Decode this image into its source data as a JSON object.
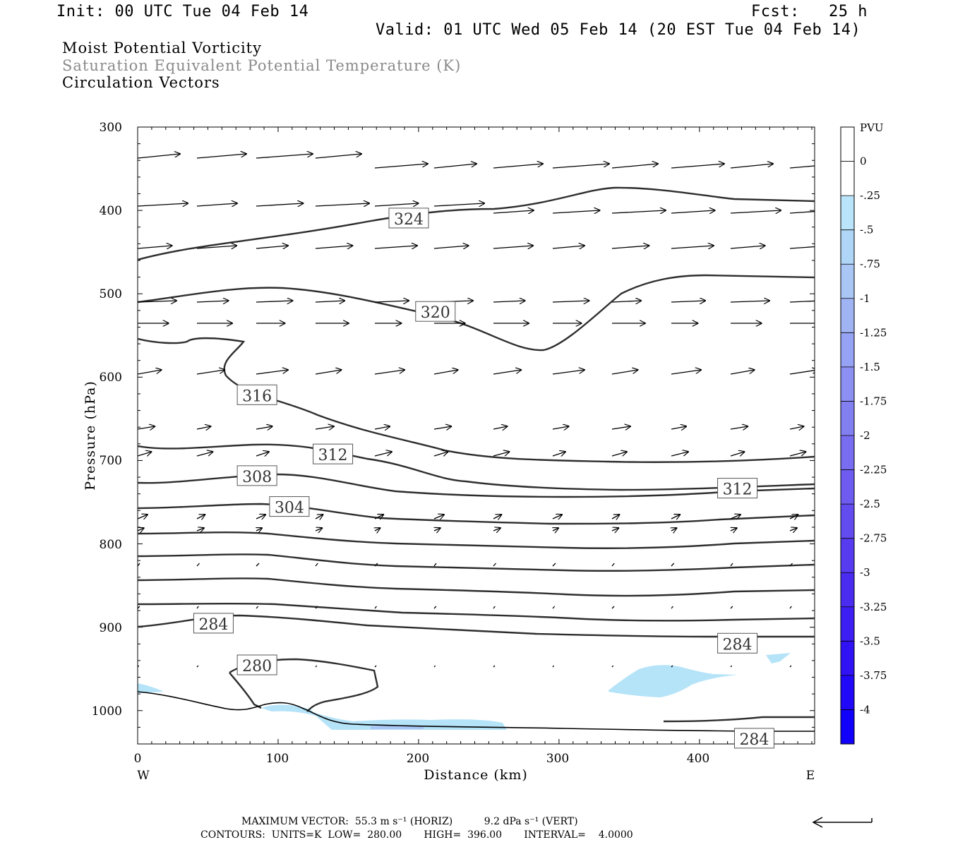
{
  "header": {
    "init": "Init: 00 UTC Tue 04 Feb 14",
    "fcst": "Fcst:   25 h",
    "valid": "Valid: 01 UTC Wed 05 Feb 14 (20 EST Tue 04 Feb 14)"
  },
  "fields": {
    "field1": "Moist Potential Vorticity",
    "field2": "Saturation Equivalent Potential Temperature (K)",
    "field3": "Circulation Vectors"
  },
  "colors": {
    "field2_text": "#8a8a8a",
    "contour": "#2e2e2e",
    "shade_light": "#b5e3f8",
    "shade_mid": "#a9c6f4"
  },
  "chart_data": {
    "type": "contour",
    "xlabel": "Distance (km)",
    "ylabel": "Pressure (hPa)",
    "xlim": [
      0,
      482
    ],
    "ylim": [
      300,
      1040
    ],
    "x_ticks": [
      0,
      100,
      200,
      300,
      400
    ],
    "y_ticks": [
      300,
      400,
      500,
      600,
      700,
      800,
      900,
      1000
    ],
    "x_end_labels": {
      "left": "W",
      "right": "E"
    },
    "contour_labels": [
      {
        "value": "324",
        "x": 193,
        "p": 410
      },
      {
        "value": "320",
        "x": 212,
        "p": 522
      },
      {
        "value": "316",
        "x": 85,
        "p": 622
      },
      {
        "value": "312",
        "x": 139,
        "p": 693
      },
      {
        "value": "308",
        "x": 85,
        "p": 719
      },
      {
        "value": "304",
        "x": 108,
        "p": 756
      },
      {
        "value": "312",
        "x": 427,
        "p": 734
      },
      {
        "value": "284",
        "x": 54,
        "p": 896
      },
      {
        "value": "284",
        "x": 427,
        "p": 920
      },
      {
        "value": "280",
        "x": 85,
        "p": 946
      },
      {
        "value": "284",
        "x": 439,
        "p": 1034
      }
    ],
    "colorbar": {
      "unit": "PVU",
      "labels": [
        "0",
        "-.25",
        "-.5",
        "-.75",
        "-1",
        "-1.25",
        "-1.5",
        "-1.75",
        "-2",
        "-2.25",
        "-2.5",
        "-2.75",
        "-3",
        "-3.25",
        "-3.5",
        "-3.75",
        "-4"
      ],
      "colors": [
        "#ffffff",
        "#ffffff",
        "#b9e4f9",
        "#b0d6f7",
        "#a9c6f5",
        "#a0b4f4",
        "#96a2f3",
        "#8c90f2",
        "#827ff1",
        "#786df0",
        "#6d5cef",
        "#624bef",
        "#563bf0",
        "#4a2cf1",
        "#3d1ef3",
        "#3012f5",
        "#2208f8",
        "#1000fc"
      ]
    }
  },
  "footer": {
    "max_vector": "MAXIMUM VECTOR:  55.3 m s⁻¹ (HORIZ)          9.2 dPa s⁻¹ (VERT)",
    "contours": "CONTOURS:  UNITS=K  LOW=  280.00       HIGH=  396.00       INTERVAL=    4.0000"
  }
}
